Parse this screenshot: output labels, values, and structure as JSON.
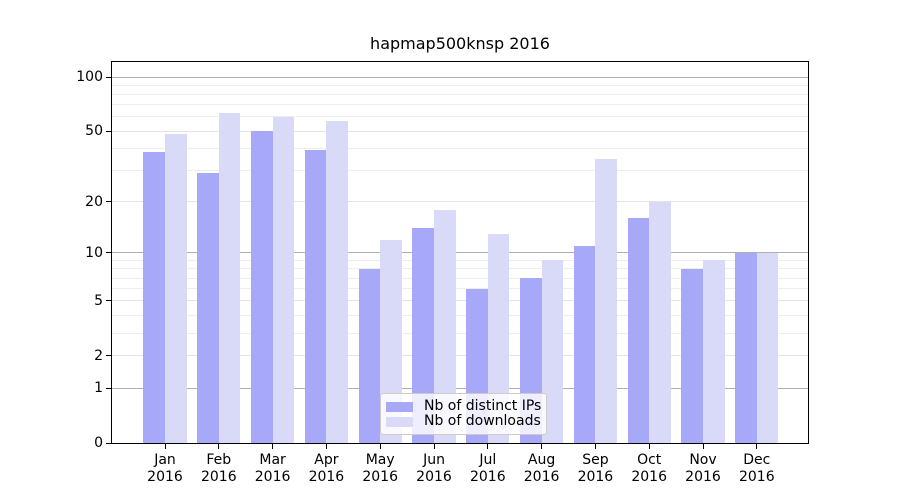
{
  "title": "hapmap500knsp 2016",
  "chart_data": {
    "type": "bar",
    "categories": [
      "Jan",
      "Feb",
      "Mar",
      "Apr",
      "May",
      "Jun",
      "Jul",
      "Aug",
      "Sep",
      "Oct",
      "Nov",
      "Dec"
    ],
    "year_label": "2016",
    "series": [
      {
        "name": "Nb of distinct IPs",
        "color": "#a8a8f8",
        "values": [
          38,
          29,
          50,
          39,
          8,
          14,
          6,
          7,
          11,
          16,
          8,
          10
        ]
      },
      {
        "name": "Nb of downloads",
        "color": "#d9d9f8",
        "values": [
          48,
          63,
          60,
          57,
          12,
          18,
          13,
          9,
          35,
          20,
          9,
          10
        ]
      }
    ],
    "title": "hapmap500knsp 2016",
    "xlabel": "",
    "ylabel": "",
    "yscale": "log1p",
    "ylim": [
      0,
      124
    ],
    "y_major_ticks": [
      0,
      1,
      2,
      5,
      10,
      20,
      50,
      100
    ],
    "y_minor_gridlines": [
      3,
      4,
      6,
      7,
      8,
      9,
      30,
      40,
      60,
      70,
      80,
      90
    ],
    "grid": "on",
    "legend_position": "lower center"
  },
  "colors": {
    "background": "#ffffff",
    "spine": "#000000",
    "grid_decade": "#b0b0b0",
    "grid_major": "#e4e4e4",
    "grid_minor": "#eeeeee",
    "text": "#000000",
    "legend_border": "#cccccc"
  }
}
